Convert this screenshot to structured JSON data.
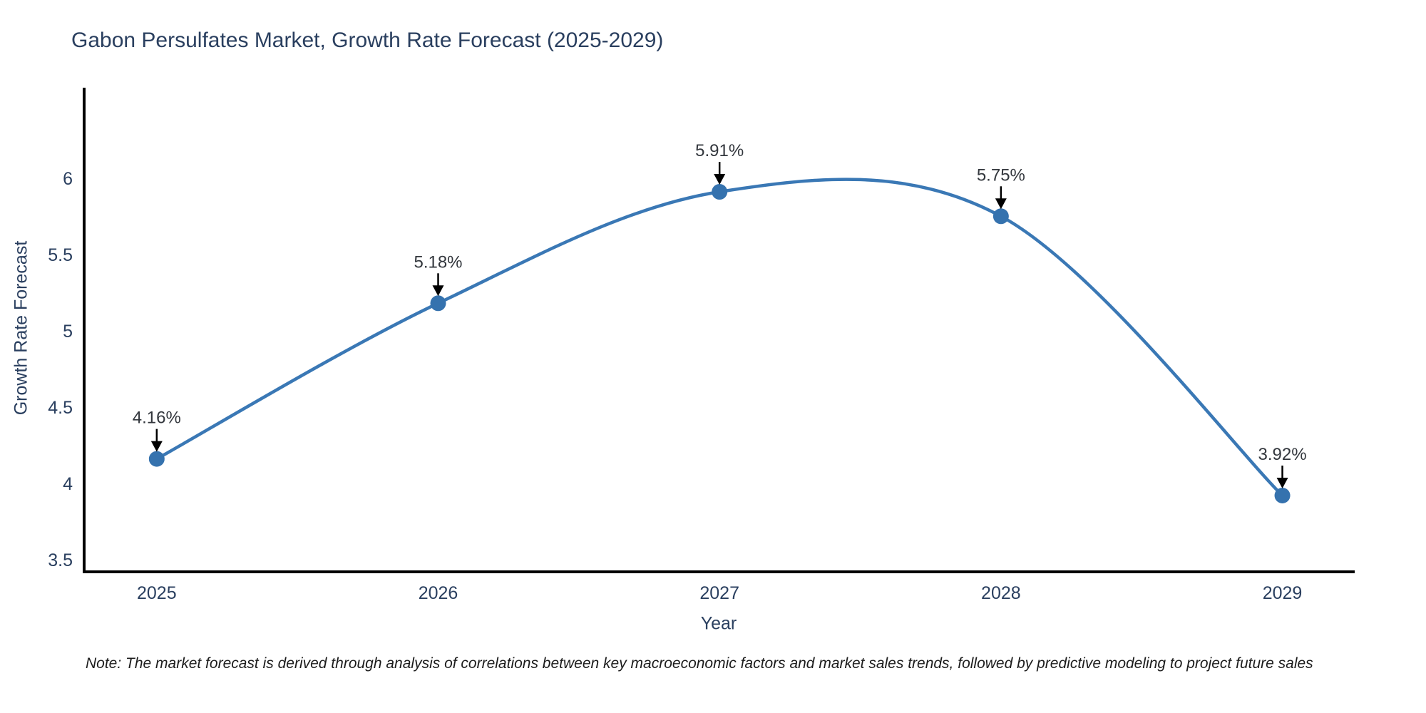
{
  "title": "Gabon Persulfates Market, Growth Rate Forecast (2025-2029)",
  "note": "Note: The market forecast is derived through analysis of correlations between key macroeconomic factors and market sales trends, followed by predictive modeling to project future sales",
  "chart_data": {
    "type": "line",
    "line_shape": "spline",
    "title": "Gabon Persulfates Market, Growth Rate Forecast (2025-2029)",
    "xlabel": "Year",
    "ylabel": "Growth Rate Forecast",
    "x": [
      2025,
      2026,
      2027,
      2028,
      2029
    ],
    "values": [
      4.16,
      5.18,
      5.91,
      5.75,
      3.92
    ],
    "point_labels": [
      "4.16%",
      "5.18%",
      "5.91%",
      "5.75%",
      "3.92%"
    ],
    "xticks": [
      {
        "value": 2025,
        "label": "2025"
      },
      {
        "value": 2026,
        "label": "2026"
      },
      {
        "value": 2027,
        "label": "2027"
      },
      {
        "value": 2028,
        "label": "2028"
      },
      {
        "value": 2029,
        "label": "2029"
      }
    ],
    "yticks": [
      {
        "value": 3.5,
        "label": "3.5"
      },
      {
        "value": 4,
        "label": "4"
      },
      {
        "value": 4.5,
        "label": "4.5"
      },
      {
        "value": 5,
        "label": "5"
      },
      {
        "value": 5.5,
        "label": "5.5"
      },
      {
        "value": 6,
        "label": "6"
      }
    ],
    "xlim": [
      2024.742,
      2029.252
    ],
    "ylim": [
      3.42,
      6.583
    ],
    "grid": false,
    "legend": false,
    "colors": {
      "line": "#3a78b5",
      "marker": "#3572ae",
      "axis": "#000000",
      "tick_text": "#2a3f5f",
      "annotation_text": "#33373d",
      "arrow": "#000000",
      "background": "#ffffff"
    }
  }
}
